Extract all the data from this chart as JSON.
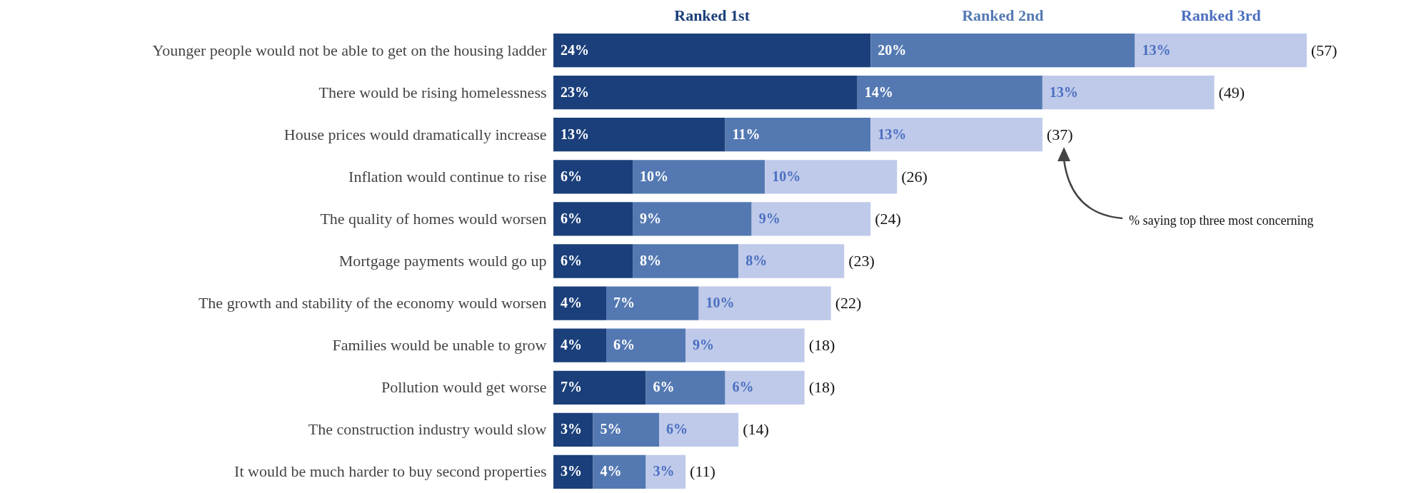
{
  "chart_data": {
    "type": "bar",
    "orientation": "horizontal",
    "stacked": true,
    "legend": "top",
    "categories": [
      "Younger people would not be able to get on the housing ladder",
      "There would be rising homelessness",
      "House prices would dramatically increase",
      "Inflation would continue to rise",
      "The quality of homes would worsen",
      "Mortgage payments would go up",
      "The growth and stability of the economy would worsen",
      "Families would be unable to grow",
      "Pollution would get worse",
      "The construction industry would slow",
      "It would be much harder to buy second properties"
    ],
    "series": [
      {
        "name": "Ranked 1st",
        "color": "#1b3f7a",
        "values": [
          24,
          23,
          13,
          6,
          6,
          6,
          4,
          4,
          7,
          3,
          3
        ],
        "value_labels": [
          "24%",
          "23%",
          "13%",
          "6%",
          "6%",
          "6%",
          "4%",
          "4%",
          "7%",
          "3%",
          "3%"
        ]
      },
      {
        "name": "Ranked 2nd",
        "color": "#5479b2",
        "values": [
          20,
          14,
          11,
          10,
          9,
          8,
          7,
          6,
          6,
          5,
          4
        ],
        "value_labels": [
          "20%",
          "14%",
          "11%",
          "10%",
          "9%",
          "8%",
          "7%",
          "6%",
          "6%",
          "5%",
          "4%"
        ]
      },
      {
        "name": "Ranked 3rd",
        "color": "#bfcaea",
        "values": [
          13,
          13,
          13,
          10,
          9,
          8,
          10,
          9,
          6,
          6,
          3
        ],
        "value_labels": [
          "13%",
          "13%",
          "13%",
          "10%",
          "9%",
          "8%",
          "10%",
          "9%",
          "6%",
          "6%",
          "3%"
        ]
      }
    ],
    "totals": [
      "(57)",
      "(49)",
      "(37)",
      "(26)",
      "(24)",
      "(23)",
      "(22)",
      "(18)",
      "(18)",
      "(14)",
      "(11)"
    ],
    "annotations": [
      "% saying top three most concerning"
    ]
  }
}
